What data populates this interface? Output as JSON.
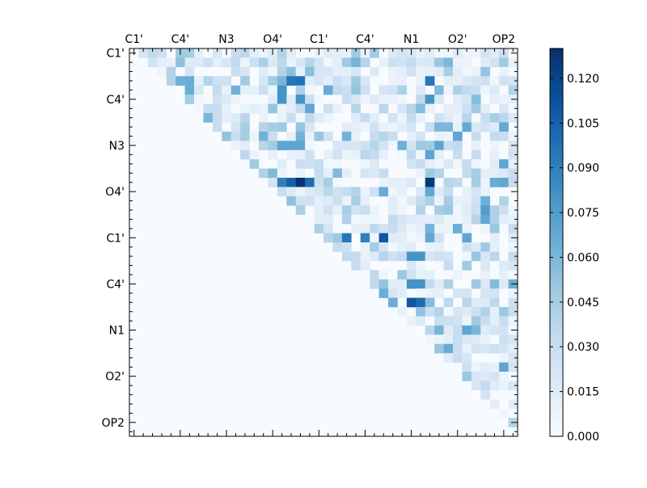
{
  "chart_data": {
    "type": "heatmap",
    "title": "",
    "atom_labels": [
      "C1'",
      "C4'",
      "N3",
      "O4'",
      "C1'",
      "C4'",
      "N1",
      "O2'",
      "OP2"
    ],
    "x_tick_labels": [
      "C1'",
      "C4'",
      "N3",
      "O4'",
      "C1'",
      "C4'",
      "N1",
      "O2'",
      "OP2"
    ],
    "y_tick_labels": [
      "C1'",
      "C4'",
      "N3",
      "O4'",
      "C1'",
      "C4'",
      "N1",
      "O2'",
      "OP2"
    ],
    "n": 42,
    "label_every": 5,
    "triangle": "upper",
    "colormap": "Blues",
    "colorbar": {
      "min": 0.0,
      "max": 0.13,
      "ticks": [
        0.0,
        0.015,
        0.03,
        0.045,
        0.06,
        0.075,
        0.09,
        0.105,
        0.12
      ],
      "tick_labels": [
        "0.000",
        "0.015",
        "0.030",
        "0.045",
        "0.060",
        "0.075",
        "0.090",
        "0.105",
        "0.120"
      ]
    },
    "highlights": [
      {
        "row": 14,
        "col": 18,
        "value": 0.128
      },
      {
        "row": 14,
        "col": 32,
        "value": 0.125
      },
      {
        "row": 14,
        "col": 17,
        "value": 0.105
      },
      {
        "row": 14,
        "col": 19,
        "value": 0.1
      },
      {
        "row": 14,
        "col": 16,
        "value": 0.09
      },
      {
        "row": 3,
        "col": 18,
        "value": 0.098
      },
      {
        "row": 3,
        "col": 17,
        "value": 0.095
      },
      {
        "row": 3,
        "col": 32,
        "value": 0.095
      },
      {
        "row": 4,
        "col": 16,
        "value": 0.08
      },
      {
        "row": 5,
        "col": 16,
        "value": 0.08
      },
      {
        "row": 5,
        "col": 18,
        "value": 0.08
      },
      {
        "row": 5,
        "col": 32,
        "value": 0.08
      },
      {
        "row": 10,
        "col": 16,
        "value": 0.07
      },
      {
        "row": 10,
        "col": 17,
        "value": 0.07
      },
      {
        "row": 10,
        "col": 18,
        "value": 0.07
      },
      {
        "row": 10,
        "col": 33,
        "value": 0.07
      },
      {
        "row": 11,
        "col": 32,
        "value": 0.07
      },
      {
        "row": 20,
        "col": 23,
        "value": 0.095
      },
      {
        "row": 20,
        "col": 25,
        "value": 0.09
      },
      {
        "row": 20,
        "col": 27,
        "value": 0.11
      },
      {
        "row": 20,
        "col": 36,
        "value": 0.07
      },
      {
        "row": 22,
        "col": 30,
        "value": 0.08
      },
      {
        "row": 22,
        "col": 31,
        "value": 0.08
      },
      {
        "row": 25,
        "col": 30,
        "value": 0.08
      },
      {
        "row": 25,
        "col": 31,
        "value": 0.08
      },
      {
        "row": 27,
        "col": 30,
        "value": 0.11
      },
      {
        "row": 27,
        "col": 31,
        "value": 0.1
      },
      {
        "row": 27,
        "col": 28,
        "value": 0.065
      },
      {
        "row": 17,
        "col": 38,
        "value": 0.075
      },
      {
        "row": 16,
        "col": 38,
        "value": 0.065
      },
      {
        "row": 30,
        "col": 36,
        "value": 0.07
      },
      {
        "row": 30,
        "col": 37,
        "value": 0.06
      },
      {
        "row": 34,
        "col": 40,
        "value": 0.07
      },
      {
        "row": 12,
        "col": 40,
        "value": 0.07
      },
      {
        "row": 1,
        "col": 34,
        "value": 0.06
      },
      {
        "row": 1,
        "col": 33,
        "value": 0.05
      },
      {
        "row": 8,
        "col": 33,
        "value": 0.06
      },
      {
        "row": 8,
        "col": 34,
        "value": 0.06
      },
      {
        "row": 9,
        "col": 35,
        "value": 0.07
      }
    ]
  }
}
